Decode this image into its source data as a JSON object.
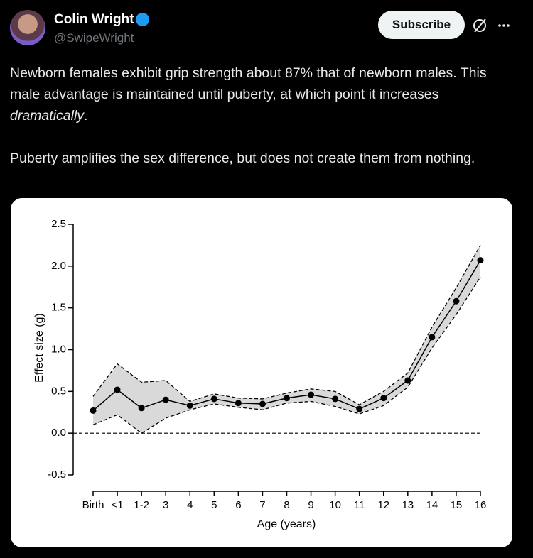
{
  "post": {
    "author": "Colin Wright",
    "handle": "@SwipeWright",
    "subscribe": "Subscribe",
    "text_1": "Newborn females exhibit grip strength about 87% that of newborn males. This male advantage is maintained until puberty, at which point it increases ",
    "text_1_em": "dramatically",
    "text_1_end": ".",
    "text_2": "Puberty amplifies the sex difference, but does not create them from nothing."
  },
  "chart_data": {
    "type": "line",
    "xlabel": "Age (years)",
    "ylabel": "Effect size (g)",
    "categories": [
      "Birth",
      "<1",
      "1-2",
      "3",
      "4",
      "5",
      "6",
      "7",
      "8",
      "9",
      "10",
      "11",
      "12",
      "13",
      "14",
      "15",
      "16"
    ],
    "series": [
      {
        "color": "#000000",
        "band_color": "#d9d9d9",
        "values": [
          0.27,
          0.52,
          0.3,
          0.4,
          0.33,
          0.41,
          0.36,
          0.35,
          0.42,
          0.46,
          0.41,
          0.29,
          0.42,
          0.63,
          1.15,
          1.58,
          2.07
        ],
        "upper": [
          0.44,
          0.83,
          0.61,
          0.63,
          0.38,
          0.47,
          0.42,
          0.41,
          0.48,
          0.53,
          0.5,
          0.34,
          0.5,
          0.72,
          1.27,
          1.74,
          2.25
        ],
        "lower": [
          0.1,
          0.22,
          0.0,
          0.18,
          0.28,
          0.35,
          0.31,
          0.28,
          0.36,
          0.38,
          0.32,
          0.23,
          0.33,
          0.55,
          1.02,
          1.42,
          1.87
        ]
      }
    ],
    "ylim": [
      -0.5,
      2.5
    ],
    "yticks": [
      -0.5,
      {
        "value": 0,
        "label": "0.0"
      },
      0.5,
      {
        "value": 1,
        "label": "1.0"
      },
      1.5,
      {
        "value": 2,
        "label": "2.0"
      },
      2.5
    ],
    "zero_line": true
  }
}
